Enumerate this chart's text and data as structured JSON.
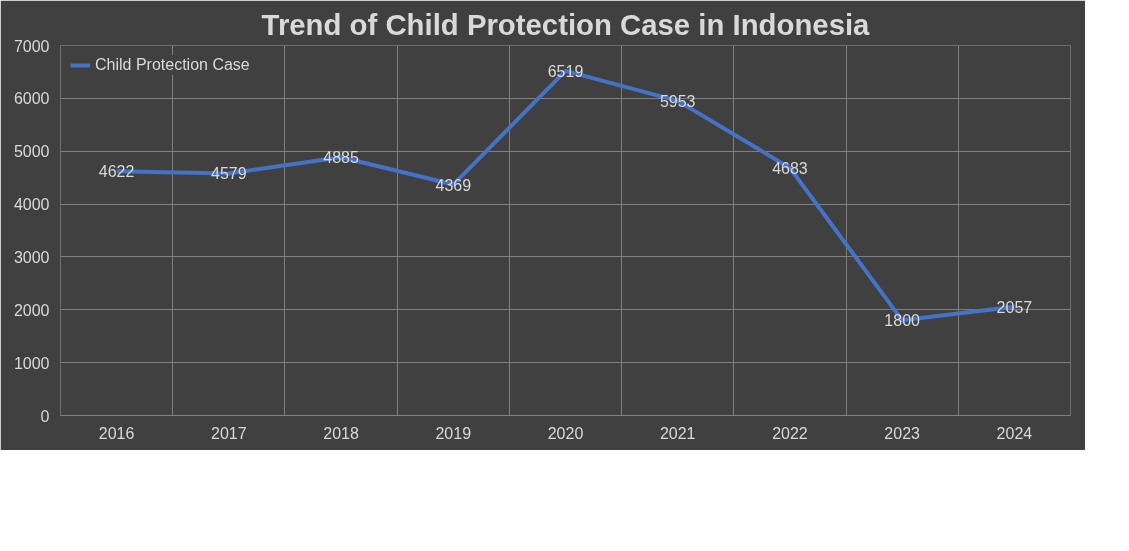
{
  "chart_data": {
    "type": "line",
    "title": "Trend of Child Protection Case in Indonesia",
    "categories": [
      "2016",
      "2017",
      "2018",
      "2019",
      "2020",
      "2021",
      "2022",
      "2023",
      "2024"
    ],
    "series": [
      {
        "name": "Child Protection Case",
        "color": "#4472c4",
        "values": [
          4622,
          4579,
          4885,
          4369,
          6519,
          5953,
          4683,
          1800,
          2057
        ]
      }
    ],
    "ylim": [
      0,
      7000
    ],
    "yticks": [
      0,
      1000,
      2000,
      3000,
      4000,
      5000,
      6000,
      7000
    ],
    "grid": true,
    "legend": "top left",
    "data_labels": true,
    "marker": "none",
    "line_style": "solid"
  }
}
